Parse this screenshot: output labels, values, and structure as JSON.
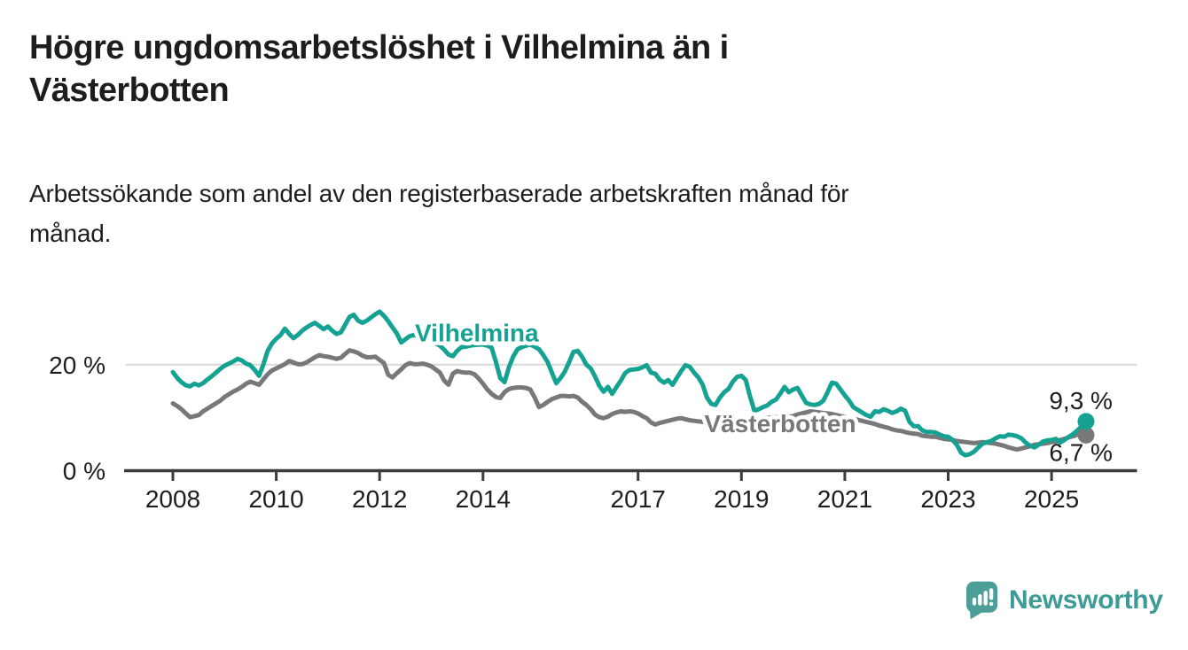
{
  "header": {
    "title_lines": [
      "Högre ungdomsarbetslöshet i Vilhelmina än i",
      "Västerbotten"
    ],
    "subtitle_lines": [
      "Arbetssökande som andel av den registerbaserade arbetskraften månad för",
      "månad."
    ]
  },
  "footer": {
    "brand": "Newsworthy",
    "brand_color": "#3d9b95",
    "logo_icon": "bar-chart-speech-bubble-icon",
    "logo_icon_color": "#4c9e99"
  },
  "chart_data": {
    "type": "line",
    "title": "Högre ungdomsarbetslöshet i Vilhelmina än i Västerbotten",
    "subtitle": "Arbetssökande som andel av den registerbaserade arbetskraften månad för månad.",
    "unit": "%",
    "x_start_year": 2008,
    "interval_months": 1,
    "x_ticks": [
      {
        "value": 2008,
        "label": "2008"
      },
      {
        "value": 2010,
        "label": "2010"
      },
      {
        "value": 2012,
        "label": "2012"
      },
      {
        "value": 2014,
        "label": "2014"
      },
      {
        "value": 2017,
        "label": "2017"
      },
      {
        "value": 2019,
        "label": "2019"
      },
      {
        "value": 2021,
        "label": "2021"
      },
      {
        "value": 2023,
        "label": "2023"
      },
      {
        "value": 2025,
        "label": "2025"
      }
    ],
    "y_ticks": [
      {
        "value": 0,
        "label": "0 %"
      },
      {
        "value": 20,
        "label": "20 %"
      }
    ],
    "ylim": [
      0,
      30
    ],
    "grid": "horizontal, only at 20 %",
    "legend_position": "labels drawn on lines",
    "axis_color": "#3b3b3b",
    "grid_color": "#d9d9d9",
    "text_color": "#1d1d1b",
    "series": [
      {
        "name": "Vilhelmina",
        "color": "#15a292",
        "end_label": "9,3 %",
        "end_value": 9.3,
        "label_anchor": {
          "year": 2013.88,
          "value": 26.1
        },
        "values": [
          18.6,
          17.5,
          16.7,
          16.1,
          15.9,
          16.4,
          16.1,
          16.5,
          17.2,
          17.8,
          18.5,
          19.2,
          19.8,
          20.2,
          20.6,
          21.1,
          20.8,
          20.2,
          19.9,
          19.0,
          17.9,
          20.0,
          22.6,
          24.0,
          24.9,
          25.6,
          26.8,
          25.8,
          25.0,
          25.6,
          26.4,
          27.0,
          27.5,
          27.9,
          27.3,
          26.7,
          27.2,
          26.4,
          25.8,
          26.1,
          27.5,
          29.0,
          29.4,
          28.3,
          27.9,
          28.3,
          28.9,
          29.5,
          30.0,
          29.2,
          28.2,
          27.0,
          25.9,
          24.2,
          24.8,
          25.4,
          25.6,
          25.3,
          25.0,
          24.7,
          24.4,
          24.0,
          23.6,
          22.8,
          21.9,
          21.6,
          22.6,
          23.3,
          23.4,
          23.6,
          23.7,
          23.8,
          23.8,
          23.6,
          23.2,
          20.5,
          17.5,
          16.7,
          19.5,
          21.5,
          22.9,
          23.3,
          23.6,
          23.8,
          23.4,
          22.9,
          21.8,
          20.5,
          18.5,
          16.5,
          17.5,
          18.7,
          20.5,
          22.4,
          22.6,
          21.5,
          20.0,
          19.3,
          17.8,
          16.0,
          14.9,
          15.8,
          14.5,
          15.8,
          17.0,
          18.4,
          19.0,
          19.1,
          19.2,
          19.5,
          19.9,
          18.5,
          18.3,
          17.2,
          16.6,
          17.1,
          16.2,
          17.5,
          18.8,
          19.9,
          19.6,
          18.5,
          17.6,
          16.2,
          13.8,
          12.6,
          12.4,
          13.8,
          14.8,
          15.4,
          16.8,
          17.7,
          17.9,
          17.1,
          14.0,
          11.3,
          11.6,
          12.0,
          12.3,
          13.0,
          13.4,
          14.5,
          15.8,
          14.8,
          15.3,
          15.6,
          14.2,
          12.8,
          12.5,
          12.4,
          12.6,
          13.2,
          14.8,
          16.6,
          16.4,
          15.3,
          14.2,
          13.2,
          12.0,
          11.5,
          11.0,
          10.5,
          10.2,
          11.2,
          11.1,
          11.6,
          11.3,
          10.9,
          11.2,
          11.7,
          11.3,
          9.2,
          8.4,
          8.4,
          7.6,
          7.3,
          7.3,
          7.2,
          6.8,
          6.5,
          6.4,
          5.8,
          4.9,
          3.4,
          2.9,
          3.1,
          3.6,
          4.4,
          5.1,
          5.4,
          5.6,
          6.1,
          6.5,
          6.4,
          6.8,
          6.7,
          6.5,
          6.1,
          5.3,
          4.7,
          4.4,
          4.9,
          5.5,
          5.7,
          5.8,
          6.0,
          5.3,
          5.8,
          6.4,
          6.9,
          7.6,
          8.4,
          9.3
        ]
      },
      {
        "name": "Västerbotten",
        "color": "#78787a",
        "end_label": "6,7 %",
        "end_value": 6.7,
        "label_anchor": {
          "year": 2019.75,
          "value": 8.9
        },
        "values": [
          12.7,
          12.2,
          11.6,
          10.8,
          10.1,
          10.3,
          10.5,
          11.2,
          11.7,
          12.2,
          12.7,
          13.2,
          13.9,
          14.4,
          14.9,
          15.3,
          15.8,
          16.4,
          16.8,
          16.5,
          16.2,
          17.2,
          18.2,
          18.9,
          19.3,
          19.7,
          20.1,
          20.7,
          20.4,
          20.1,
          20.1,
          20.4,
          20.9,
          21.4,
          21.8,
          21.6,
          21.5,
          21.3,
          21.1,
          21.3,
          22.0,
          22.7,
          22.5,
          22.2,
          21.7,
          21.4,
          21.4,
          21.5,
          20.9,
          20.3,
          18.1,
          17.6,
          18.4,
          19.1,
          19.9,
          20.3,
          20.1,
          20.1,
          20.2,
          20.0,
          19.7,
          19.1,
          18.5,
          17.0,
          16.2,
          18.3,
          18.8,
          18.6,
          18.5,
          18.5,
          18.2,
          17.4,
          16.4,
          15.3,
          14.5,
          13.9,
          13.7,
          14.8,
          15.4,
          15.6,
          15.7,
          15.7,
          15.6,
          15.3,
          13.8,
          12.0,
          12.4,
          13.0,
          13.5,
          13.8,
          14.1,
          14.1,
          14.0,
          14.1,
          13.8,
          13.0,
          12.4,
          11.6,
          10.6,
          10.1,
          9.9,
          10.2,
          10.7,
          11.0,
          11.2,
          11.1,
          11.2,
          11.1,
          10.8,
          10.3,
          9.9,
          9.1,
          8.7,
          9.0,
          9.2,
          9.4,
          9.6,
          9.8,
          9.9,
          9.7,
          9.5,
          9.4,
          9.3,
          9.2,
          9.1,
          9.0,
          8.9,
          9.0,
          9.0,
          9.1,
          9.2,
          9.2,
          9.3,
          9.5,
          9.6,
          9.7,
          9.8,
          9.9,
          10.0,
          10.0,
          10.1,
          10.1,
          10.2,
          10.2,
          10.3,
          10.6,
          10.8,
          11.0,
          11.2,
          11.1,
          11.0,
          10.9,
          10.8,
          10.7,
          10.5,
          10.3,
          10.1,
          9.9,
          9.8,
          9.6,
          9.4,
          9.2,
          9.0,
          8.8,
          8.5,
          8.3,
          8.1,
          7.8,
          7.6,
          7.5,
          7.3,
          7.1,
          7.0,
          6.9,
          6.6,
          6.5,
          6.4,
          6.4,
          6.2,
          6.0,
          5.9,
          5.8,
          5.6,
          5.5,
          5.4,
          5.3,
          5.2,
          5.3,
          5.4,
          5.3,
          5.2,
          5.1,
          4.9,
          4.7,
          4.4,
          4.2,
          4.0,
          4.2,
          4.4,
          4.6,
          4.9,
          5.0,
          5.1,
          5.2,
          5.4,
          5.5,
          5.8,
          6.0,
          6.3,
          6.5,
          6.8,
          6.9,
          6.7
        ]
      }
    ]
  }
}
